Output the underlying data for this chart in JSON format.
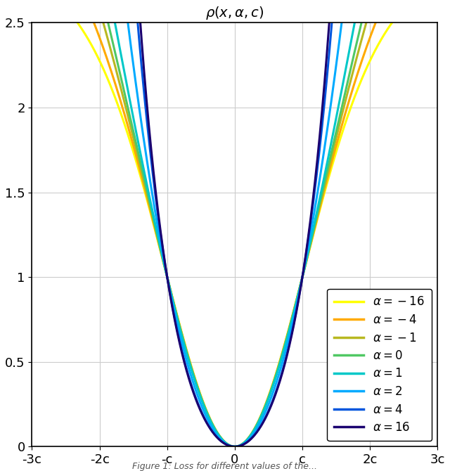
{
  "title": "$\\rho(x, \\alpha, c)$",
  "alphas": [
    -16,
    -4,
    -1,
    0,
    1,
    2,
    4,
    16
  ],
  "colors": [
    "#ffff00",
    "#ffaa00",
    "#b8b820",
    "#50c864",
    "#00c8c8",
    "#00aaff",
    "#0055dd",
    "#1a0070"
  ],
  "c": 1.0,
  "xlim": [
    -3,
    3
  ],
  "ylim": [
    0,
    2.5
  ],
  "xtick_labels": [
    "-3c",
    "-2c",
    "-c",
    "0",
    "c",
    "2c",
    "3c"
  ],
  "xtick_vals": [
    -3,
    -2,
    -1,
    0,
    1,
    2,
    3
  ],
  "ytick_vals": [
    0,
    0.5,
    1.0,
    1.5,
    2.0,
    2.5
  ],
  "linewidth": 2.2,
  "figsize": [
    6.4,
    6.7
  ],
  "dpi": 100
}
